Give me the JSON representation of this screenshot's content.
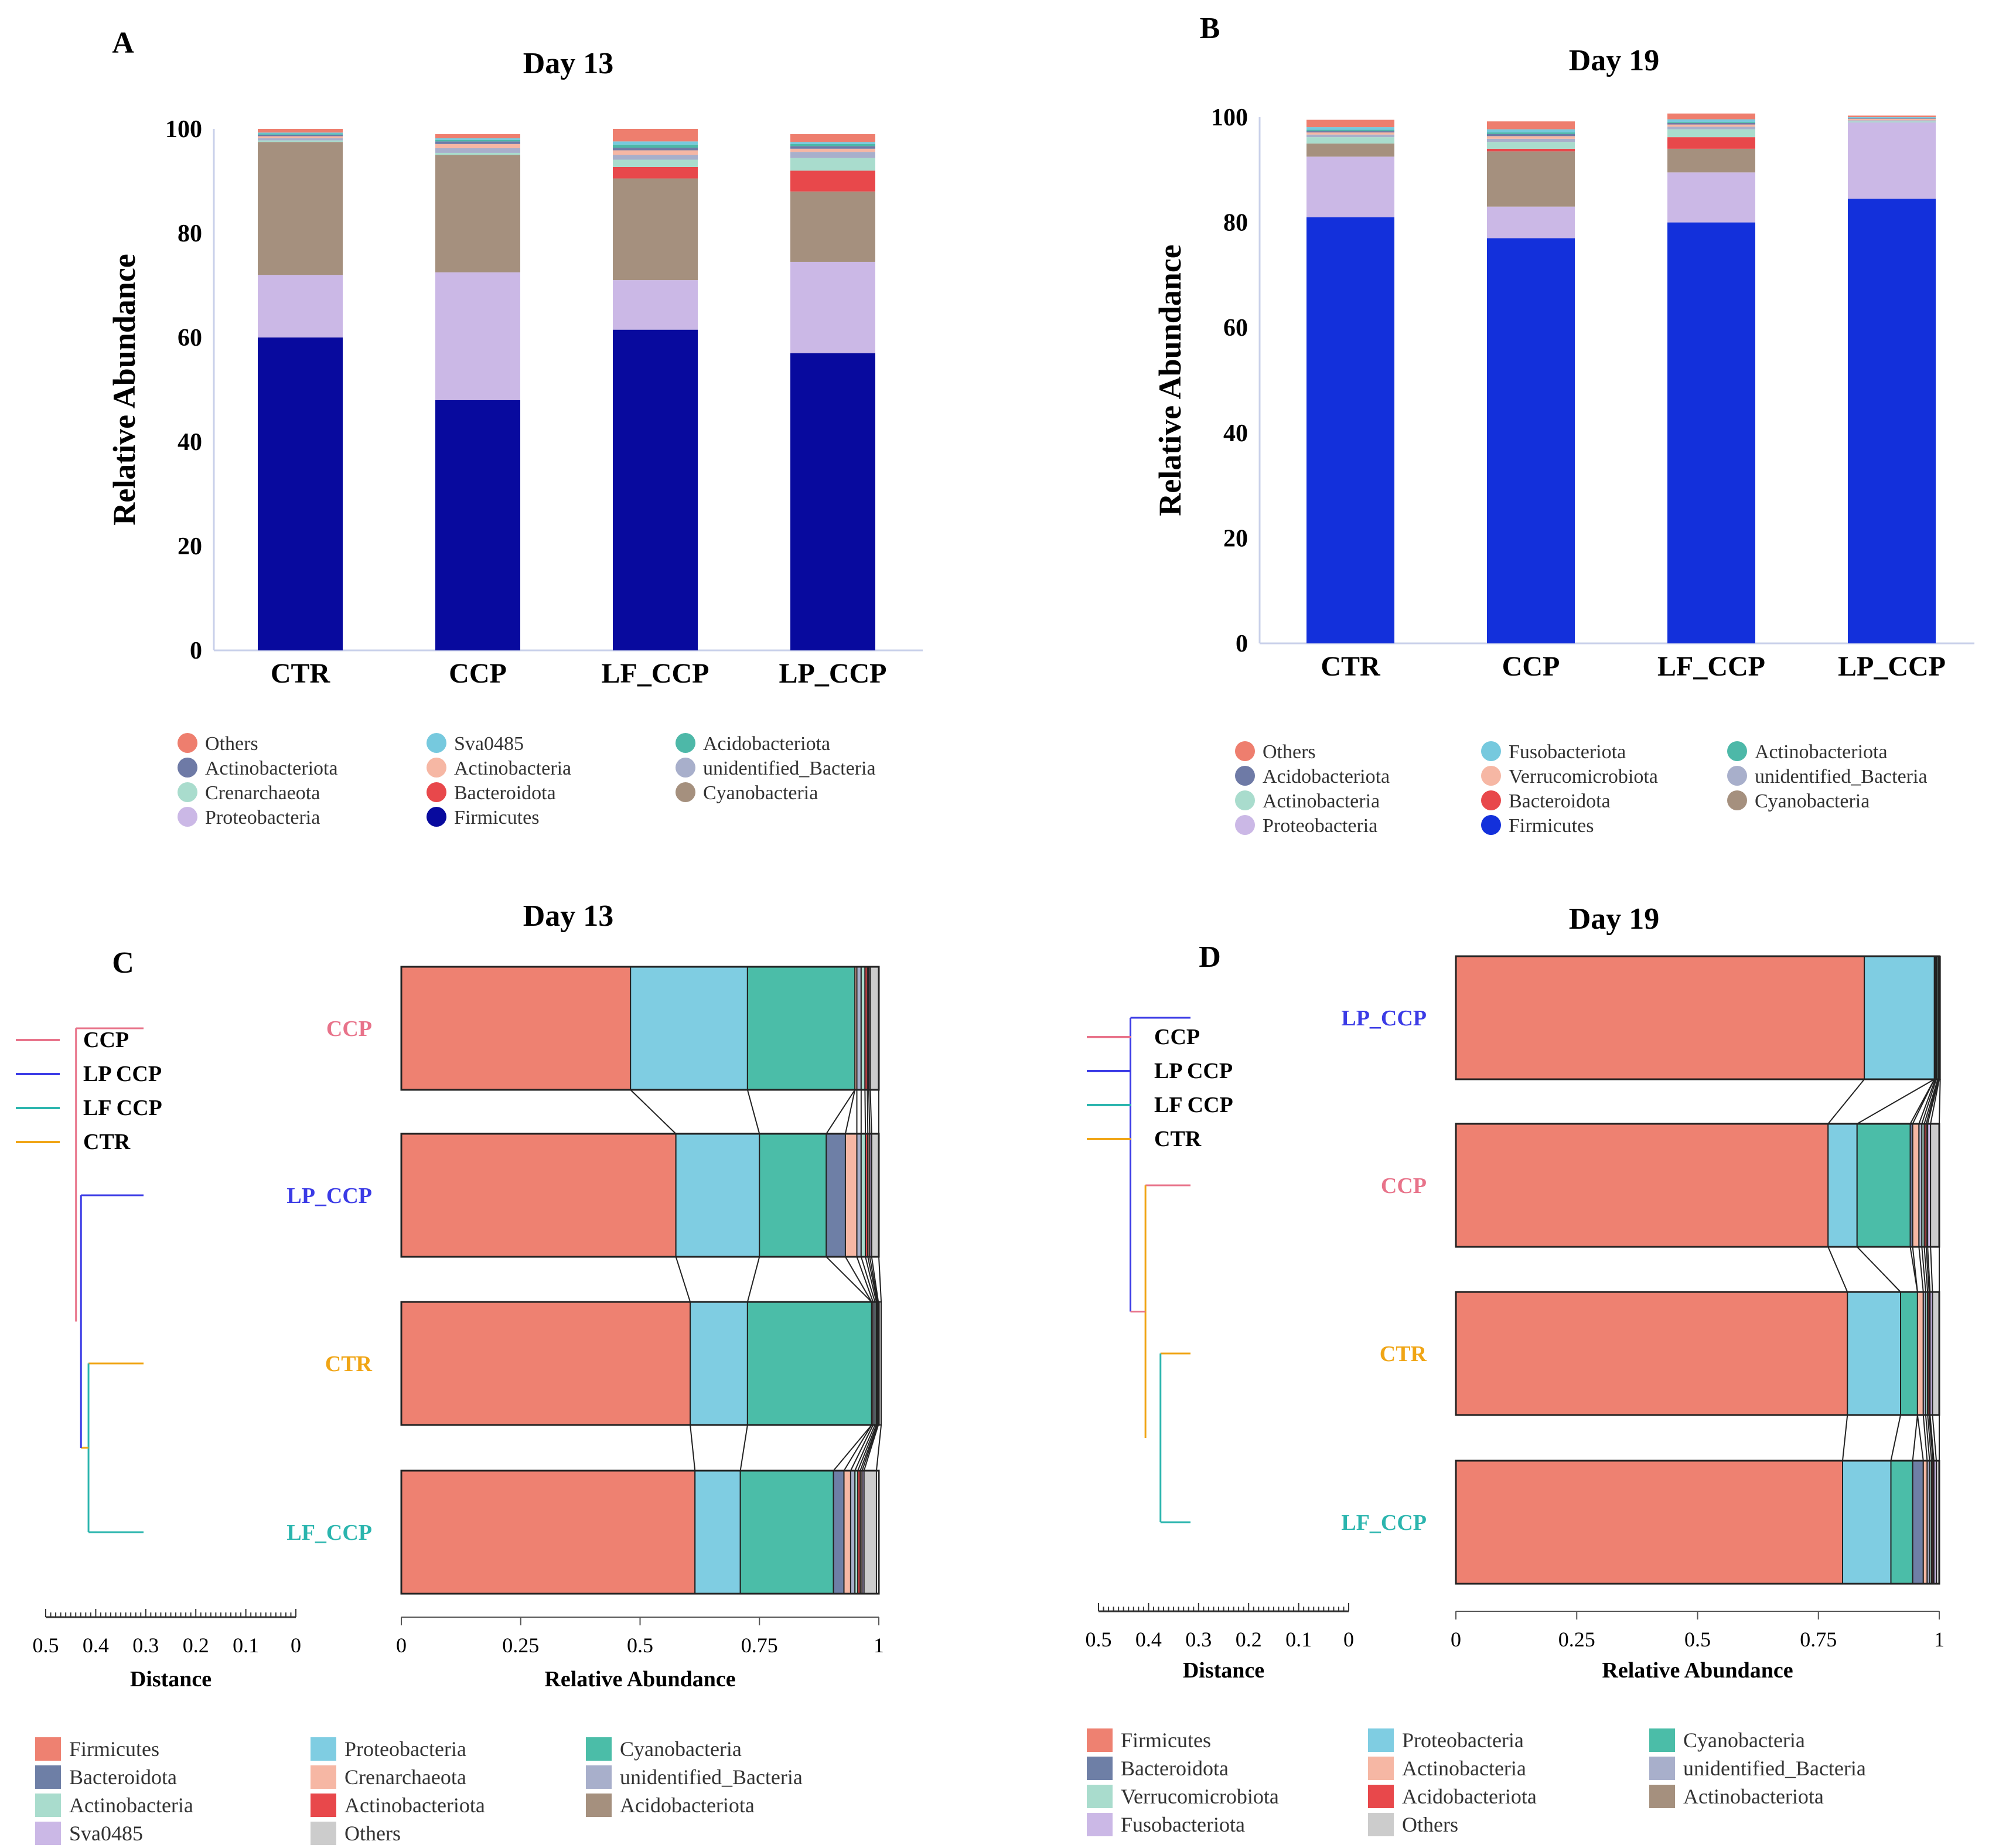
{
  "chart_data": [
    {
      "panel": "A",
      "type": "bar",
      "stacked": true,
      "title": "Day 13",
      "ylabel": "Relative Abundance",
      "ylim": [
        0,
        100
      ],
      "yticks": [
        "0",
        "20",
        "40",
        "60",
        "80",
        "100"
      ],
      "categories": [
        "CTR",
        "CCP",
        "LF_CCP",
        "LP_CCP"
      ],
      "series": [
        {
          "name": "Firmicutes",
          "color": "#080A9E",
          "values": [
            60,
            48,
            61.5,
            57
          ]
        },
        {
          "name": "Proteobacteria",
          "color": "#CBB8E6",
          "values": [
            12,
            24.5,
            9.5,
            17.5
          ]
        },
        {
          "name": "Cyanobacteria",
          "color": "#A5907E",
          "values": [
            25.5,
            22.5,
            19.5,
            13.5
          ]
        },
        {
          "name": "Bacteroidota",
          "color": "#E8484B",
          "values": [
            0,
            0,
            2.2,
            4
          ]
        },
        {
          "name": "Crenarchaeota",
          "color": "#A9DCCD",
          "values": [
            0.3,
            0.4,
            1.4,
            2.4
          ]
        },
        {
          "name": "unidentified_Bacteria",
          "color": "#A8AFCB",
          "values": [
            0.4,
            0.9,
            0.9,
            1.2
          ]
        },
        {
          "name": "Actinobacteria",
          "color": "#F6B7A4",
          "values": [
            0.4,
            0.8,
            0.9,
            0.6
          ]
        },
        {
          "name": "Actinobacteriota",
          "color": "#6E7AA6",
          "values": [
            0.3,
            0.5,
            0.5,
            0.5
          ]
        },
        {
          "name": "Acidobacteriota",
          "color": "#4DB8A8",
          "values": [
            0.2,
            0.3,
            0.6,
            0.4
          ]
        },
        {
          "name": "Sva0485",
          "color": "#76C9DE",
          "values": [
            0.2,
            0.3,
            0.6,
            0.4
          ]
        },
        {
          "name": "Others",
          "color": "#EE7E6E",
          "values": [
            0.7,
            0.8,
            2.4,
            1.5
          ]
        }
      ],
      "legend": [
        "Others",
        "Sva0485",
        "Acidobacteriota",
        "Actinobacteriota",
        "Actinobacteria",
        "unidentified_Bacteria",
        "Crenarchaeota",
        "Bacteroidota",
        "Cyanobacteria",
        "Proteobacteria",
        "Firmicutes"
      ]
    },
    {
      "panel": "B",
      "type": "bar",
      "stacked": true,
      "title": "Day 19",
      "ylabel": "Relative Abundance",
      "ylim": [
        0,
        100
      ],
      "yticks": [
        "0",
        "20",
        "40",
        "60",
        "80",
        "100"
      ],
      "categories": [
        "CTR",
        "CCP",
        "LF_CCP",
        "LP_CCP"
      ],
      "series": [
        {
          "name": "Firmicutes",
          "color": "#1330DB",
          "values": [
            81,
            77,
            80,
            84.5
          ]
        },
        {
          "name": "Proteobacteria",
          "color": "#CBB8E6",
          "values": [
            11.5,
            6,
            9.5,
            14.5
          ]
        },
        {
          "name": "Cyanobacteria",
          "color": "#A5907E",
          "values": [
            2.5,
            10.5,
            4.5,
            0
          ]
        },
        {
          "name": "Bacteroidota",
          "color": "#E8484B",
          "values": [
            0,
            0.5,
            2.2,
            0
          ]
        },
        {
          "name": "Actinobacteria",
          "color": "#A9DCCD",
          "values": [
            1.2,
            1.3,
            1.5,
            0.2
          ]
        },
        {
          "name": "unidentified_Bacteria",
          "color": "#A8AFCB",
          "values": [
            0.5,
            0.6,
            0.5,
            0.2
          ]
        },
        {
          "name": "Verrucomicrobiota",
          "color": "#F6B7A4",
          "values": [
            0.4,
            0.5,
            0.4,
            0.3
          ]
        },
        {
          "name": "Acidobacteriota",
          "color": "#6E7AA6",
          "values": [
            0.3,
            0.4,
            0.3,
            0.1
          ]
        },
        {
          "name": "Actinobacteriota",
          "color": "#4DB8A8",
          "values": [
            0.2,
            0.3,
            0.2,
            0.1
          ]
        },
        {
          "name": "Fusobacteriota",
          "color": "#76C9DE",
          "values": [
            0.5,
            0.6,
            0.5,
            0.1
          ]
        },
        {
          "name": "Others",
          "color": "#EE7E6E",
          "values": [
            1.4,
            1.5,
            1.1,
            0.3
          ]
        }
      ],
      "legend": [
        "Others",
        "Fusobacteriota",
        "Actinobacteriota",
        "Acidobacteriota",
        "Verrucomicrobiota",
        "unidentified_Bacteria",
        "Actinobacteria",
        "Bacteroidota",
        "Cyanobacteria",
        "Proteobacteria",
        "Firmicutes"
      ]
    },
    {
      "panel": "C",
      "type": "bar",
      "orientation": "horizontal",
      "stacked": true,
      "title": "Day 13",
      "xlabel": "Relative Abundance",
      "xlim": [
        0,
        1
      ],
      "xticks": [
        "0",
        "0.25",
        "0.5",
        "0.75",
        "1"
      ],
      "dendrogram": {
        "xlabel": "Distance",
        "ticks": [
          "0.5",
          "0.4",
          "0.3",
          "0.2",
          "0.1",
          "0"
        ],
        "order": [
          "CCP",
          "LP_CCP",
          "CTR",
          "LF_CCP"
        ],
        "legend": [
          "CCP",
          "LP CCP",
          "LF CCP",
          "CTR"
        ],
        "colors": {
          "CCP": "#E8738A",
          "LP_CCP": "#3B3BE6",
          "CTR": "#F0A515",
          "LF_CCP": "#2BB5AE"
        }
      },
      "categories": [
        "CCP",
        "LP_CCP",
        "CTR",
        "LF_CCP"
      ],
      "series": [
        {
          "name": "Firmicutes",
          "color": "#EE8171",
          "values": [
            0.48,
            0.575,
            0.605,
            0.615
          ]
        },
        {
          "name": "Proteobacteria",
          "color": "#7FCDE2",
          "values": [
            0.245,
            0.175,
            0.12,
            0.095
          ]
        },
        {
          "name": "Cyanobacteria",
          "color": "#4BBDA8",
          "values": [
            0.225,
            0.14,
            0.26,
            0.195
          ]
        },
        {
          "name": "Bacteroidota",
          "color": "#6E7FA6",
          "values": [
            0,
            0.04,
            0,
            0.022
          ]
        },
        {
          "name": "Crenarchaeota",
          "color": "#F6B7A4",
          "values": [
            0.004,
            0.024,
            0.003,
            0.014
          ]
        },
        {
          "name": "unidentified_Bacteria",
          "color": "#A8AFCB",
          "values": [
            0.009,
            0.009,
            0.004,
            0.009
          ]
        },
        {
          "name": "Actinobacteria",
          "color": "#A9DCCD",
          "values": [
            0.008,
            0.009,
            0.003,
            0.006
          ]
        },
        {
          "name": "Actinobacteriota",
          "color": "#E8484B",
          "values": [
            0.005,
            0.005,
            0.002,
            0.005
          ]
        },
        {
          "name": "Acidobacteriota",
          "color": "#A5907E",
          "values": [
            0.003,
            0.004,
            0.001,
            0.004
          ]
        },
        {
          "name": "Sva0485",
          "color": "#CBB8E6",
          "values": [
            0.003,
            0.004,
            0.001,
            0.004
          ]
        },
        {
          "name": "Others",
          "color": "#CCCCCC",
          "values": [
            0.018,
            0.015,
            0.006,
            0.026
          ]
        }
      ],
      "legend": [
        "Firmicutes",
        "Proteobacteria",
        "Cyanobacteria",
        "Bacteroidota",
        "Crenarchaeota",
        "unidentified_Bacteria",
        "Actinobacteria",
        "Actinobacteriota",
        "Acidobacteriota",
        "Sva0485",
        "Others"
      ]
    },
    {
      "panel": "D",
      "type": "bar",
      "orientation": "horizontal",
      "stacked": true,
      "title": "Day 19",
      "xlabel": "Relative Abundance",
      "xlim": [
        0,
        1
      ],
      "xticks": [
        "0",
        "0.25",
        "0.5",
        "0.75",
        "1"
      ],
      "dendrogram": {
        "xlabel": "Distance",
        "ticks": [
          "0.5",
          "0.4",
          "0.3",
          "0.2",
          "0.1",
          "0"
        ],
        "order": [
          "LP_CCP",
          "CCP",
          "CTR",
          "LF_CCP"
        ],
        "legend": [
          "CCP",
          "LP CCP",
          "LF CCP",
          "CTR"
        ],
        "colors": {
          "CCP": "#E8738A",
          "LP_CCP": "#3B3BE6",
          "CTR": "#F0A515",
          "LF_CCP": "#2BB5AE"
        }
      },
      "categories": [
        "LP_CCP",
        "CCP",
        "CTR",
        "LF_CCP"
      ],
      "series": [
        {
          "name": "Firmicutes",
          "color": "#EE8171",
          "values": [
            0.845,
            0.77,
            0.81,
            0.8
          ]
        },
        {
          "name": "Proteobacteria",
          "color": "#7FCDE2",
          "values": [
            0.145,
            0.06,
            0.11,
            0.1
          ]
        },
        {
          "name": "Cyanobacteria",
          "color": "#4BBDA8",
          "values": [
            0,
            0.11,
            0.035,
            0.045
          ]
        },
        {
          "name": "Bacteroidota",
          "color": "#6E7FA6",
          "values": [
            0,
            0.005,
            0,
            0.022
          ]
        },
        {
          "name": "Actinobacteria",
          "color": "#F6B7A4",
          "values": [
            0.002,
            0.013,
            0.012,
            0.008
          ]
        },
        {
          "name": "unidentified_Bacteria",
          "color": "#A8AFCB",
          "values": [
            0.002,
            0.006,
            0.005,
            0.005
          ]
        },
        {
          "name": "Verrucomicrobiota",
          "color": "#A9DCCD",
          "values": [
            0.003,
            0.005,
            0.004,
            0.004
          ]
        },
        {
          "name": "Acidobacteriota",
          "color": "#E8484B",
          "values": [
            0.001,
            0.004,
            0.003,
            0.003
          ]
        },
        {
          "name": "Actinobacteriota",
          "color": "#A5907E",
          "values": [
            0.001,
            0.003,
            0.002,
            0.002
          ]
        },
        {
          "name": "Fusobacteriota",
          "color": "#CBB8E6",
          "values": [
            0.001,
            0.006,
            0.005,
            0.005
          ]
        },
        {
          "name": "Others",
          "color": "#CCCCCC",
          "values": [
            0.002,
            0.018,
            0.014,
            0.006
          ]
        }
      ],
      "legend": [
        "Firmicutes",
        "Proteobacteria",
        "Cyanobacteria",
        "Bacteroidota",
        "Actinobacteria",
        "unidentified_Bacteria",
        "Verrucomicrobiota",
        "Acidobacteriota",
        "Actinobacteriota",
        "Fusobacteriota",
        "Others"
      ]
    }
  ],
  "labels": {
    "A": "A",
    "B": "B",
    "C": "C",
    "D": "D"
  }
}
